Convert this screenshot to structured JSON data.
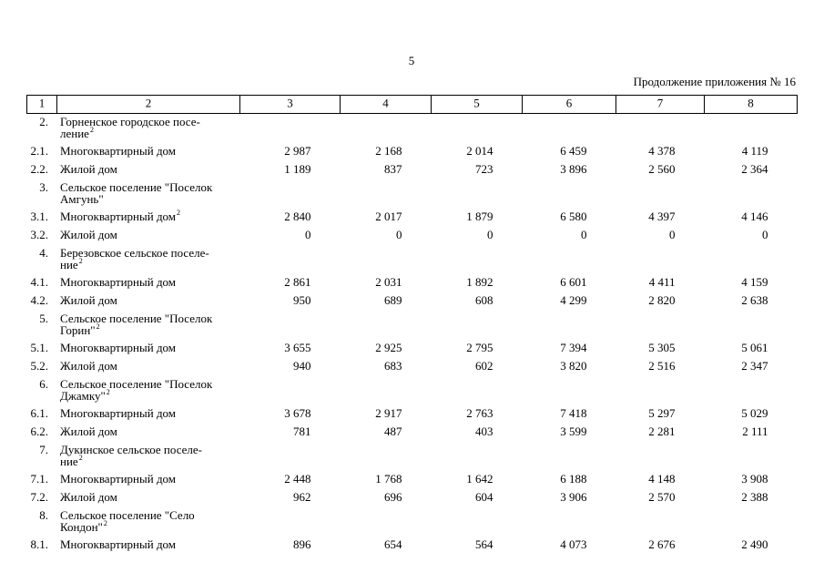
{
  "page_number": "5",
  "caption": "Продолжение приложения № 16",
  "table": {
    "header": [
      "1",
      "2",
      "3",
      "4",
      "5",
      "6",
      "7",
      "8"
    ],
    "rows": [
      {
        "num": "2.",
        "name": [
          "Горненское городское посе-",
          "ление"
        ],
        "sup": "2"
      },
      {
        "num": "2.1.",
        "name": "Многоквартирный дом",
        "values": [
          "2 987",
          "2 168",
          "2 014",
          "6 459",
          "4 378",
          "4 119"
        ]
      },
      {
        "num": "2.2.",
        "name": "Жилой дом",
        "values": [
          "1 189",
          "837",
          "723",
          "3 896",
          "2 560",
          "2 364"
        ]
      },
      {
        "num": "3.",
        "name": [
          "Сельское поселение \"Поселок",
          "Амгунь\""
        ]
      },
      {
        "num": "3.1.",
        "name": "Многоквартирный дом",
        "sup": "2",
        "values": [
          "2 840",
          "2 017",
          "1 879",
          "6 580",
          "4 397",
          "4 146"
        ]
      },
      {
        "num": "3.2.",
        "name": "Жилой дом",
        "values": [
          "0",
          "0",
          "0",
          "0",
          "0",
          "0"
        ]
      },
      {
        "num": "4.",
        "name": [
          "Березовское сельское поселе-",
          "ние"
        ],
        "sup": "2"
      },
      {
        "num": "4.1.",
        "name": "Многоквартирный дом",
        "values": [
          "2 861",
          "2 031",
          "1 892",
          "6 601",
          "4 411",
          "4 159"
        ]
      },
      {
        "num": "4.2.",
        "name": "Жилой дом",
        "values": [
          "950",
          "689",
          "608",
          "4 299",
          "2 820",
          "2 638"
        ]
      },
      {
        "num": "5.",
        "name": [
          "Сельское поселение \"Поселок",
          "Горин\""
        ],
        "sup": "2"
      },
      {
        "num": "5.1.",
        "name": "Многоквартирный дом",
        "values": [
          "3 655",
          "2 925",
          "2 795",
          "7 394",
          "5 305",
          "5 061"
        ]
      },
      {
        "num": "5.2.",
        "name": "Жилой дом",
        "values": [
          "940",
          "683",
          "602",
          "3 820",
          "2 516",
          "2 347"
        ]
      },
      {
        "num": "6.",
        "name": [
          "Сельское поселение \"Поселок",
          "Джамку\""
        ],
        "sup": "2"
      },
      {
        "num": "6.1.",
        "name": "Многоквартирный дом",
        "values": [
          "3 678",
          "2 917",
          "2 763",
          "7 418",
          "5 297",
          "5 029"
        ]
      },
      {
        "num": "6.2.",
        "name": "Жилой дом",
        "values": [
          "781",
          "487",
          "403",
          "3 599",
          "2 281",
          "2 111"
        ]
      },
      {
        "num": "7.",
        "name": [
          "Дукинское сельское поселе-",
          "ние"
        ],
        "sup": "2"
      },
      {
        "num": "7.1.",
        "name": "Многоквартирный дом",
        "values": [
          "2 448",
          "1 768",
          "1 642",
          "6 188",
          "4 148",
          "3 908"
        ]
      },
      {
        "num": "7.2.",
        "name": "Жилой дом",
        "values": [
          "962",
          "696",
          "604",
          "3 906",
          "2 570",
          "2 388"
        ]
      },
      {
        "num": "8.",
        "name": [
          "Сельское поселение \"Село",
          "Кондон\""
        ],
        "sup": "2"
      },
      {
        "num": "8.1.",
        "name": "Многоквартирный дом",
        "values": [
          "896",
          "654",
          "564",
          "4 073",
          "2 676",
          "2 490"
        ]
      }
    ]
  }
}
